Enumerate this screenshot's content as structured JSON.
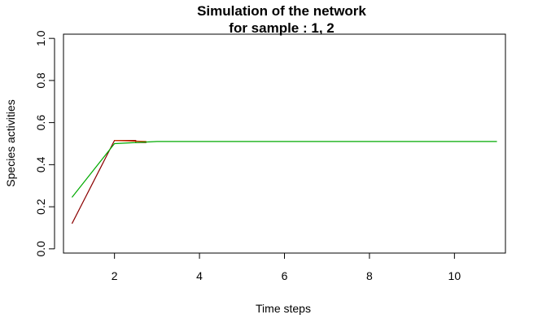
{
  "chart_data": {
    "type": "line",
    "title_line1": "Simulation of the network",
    "title_line2": "for sample : 1, 2",
    "xlabel": "Time steps",
    "ylabel": "Species activities",
    "xlim": [
      0.8,
      11.2
    ],
    "ylim": [
      -0.02,
      1.02
    ],
    "xticks": [
      2,
      4,
      6,
      8,
      10
    ],
    "yticks": [
      0.0,
      0.2,
      0.4,
      0.6,
      0.8,
      1.0
    ],
    "xtick_labels": [
      "2",
      "4",
      "6",
      "8",
      "10"
    ],
    "ytick_labels": [
      "0.0",
      "0.2",
      "0.4",
      "0.6",
      "0.8",
      "1.0"
    ],
    "grid": false,
    "series": [
      {
        "color": "#8b0000",
        "x": [
          1,
          2,
          2.5,
          2.5,
          2.75
        ],
        "y": [
          0.12,
          0.515,
          0.515,
          0.505,
          0.505
        ]
      },
      {
        "color": "#cc3300",
        "x": [
          2,
          2.75
        ],
        "y": [
          0.515,
          0.51
        ]
      },
      {
        "color": "#00aa00",
        "x": [
          1,
          2,
          3,
          4,
          5,
          6,
          7,
          8,
          9,
          10,
          11
        ],
        "y": [
          0.245,
          0.5,
          0.51,
          0.51,
          0.51,
          0.51,
          0.51,
          0.51,
          0.51,
          0.51,
          0.51
        ]
      }
    ]
  }
}
